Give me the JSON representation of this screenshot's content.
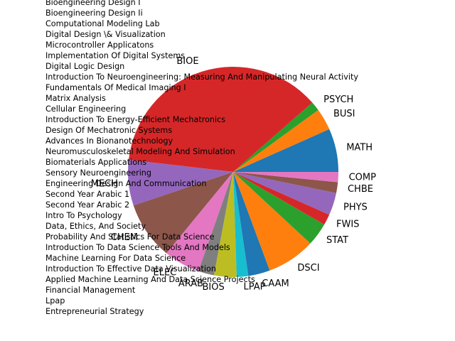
{
  "chart_data": {
    "type": "pie",
    "startangle_deg": 0,
    "counterclock": true,
    "slices": [
      {
        "label": "MATH",
        "value": 6,
        "color": "#1f77b4"
      },
      {
        "label": "BUSI",
        "value": 3,
        "color": "#ff7f0e"
      },
      {
        "label": "PSYCH",
        "value": 1.3,
        "color": "#2ca02c"
      },
      {
        "label": "BIOE",
        "value": 33,
        "color": "#d62728"
      },
      {
        "label": "MECH",
        "value": 6.3,
        "color": "#9467bd"
      },
      {
        "label": "CHEM",
        "value": 8,
        "color": "#8c564b"
      },
      {
        "label": "ELEC",
        "value": 5,
        "color": "#e377c2"
      },
      {
        "label": "ARAB",
        "value": 2.2,
        "color": "#7f7f7f"
      },
      {
        "label": "BIOS",
        "value": 3.1,
        "color": "#bcbd22"
      },
      {
        "label": "LPAP",
        "value": 1.6,
        "color": "#17becf"
      },
      {
        "label": "CAAM",
        "value": 3,
        "color": "#1f77b4"
      },
      {
        "label": "DSCI",
        "value": 6.7,
        "color": "#ff7f0e"
      },
      {
        "label": "STAT",
        "value": 3.2,
        "color": "#2ca02c"
      },
      {
        "label": "FWIS",
        "value": 1.5,
        "color": "#d62728"
      },
      {
        "label": "PHYS",
        "value": 3.1,
        "color": "#9467bd"
      },
      {
        "label": "CHBE",
        "value": 1.5,
        "color": "#8c564b"
      },
      {
        "label": "COMP",
        "value": 1.4,
        "color": "#e377c2"
      }
    ],
    "overlay_text": [
      "Bioengineering Design I",
      "Bioengineering Design Ii",
      "Computational Modeling Lab",
      "Digital Design \\& Visualization",
      "Microcontroller Applicatons",
      "Implementation Of Digital Systems",
      "Digital Logic Design",
      "Introduction To Neuroengineering: Measuring And Manipulating Neural Activity",
      "Fundamentals Of Medical Imaging I",
      "Matrix Analysis",
      "Cellular Engineering",
      "Introduction To Energy-Efficient Mechatronics",
      "Design Of Mechatronic Systems",
      "Advances In Bionanotechnology",
      "Neuromusculoskeletal Modeling And Simulation",
      "Biomaterials Applications",
      "Sensory Neuroengineering",
      "Engineering Design And Communication",
      "Second Year Arabic 1",
      "Second Year Arabic 2",
      "Intro To Psychology",
      "Data, Ethics, And Society",
      "Probability And Statistics For Data Science",
      "Introduction To Data Science Tools And Models",
      "Machine Learning For Data Science",
      "Introduction To Effective Data Visualization",
      "Applied Machine Learning And Data Science Projects",
      "Financial Management",
      "Lpap",
      "Entrepreneurial Strategy"
    ]
  }
}
